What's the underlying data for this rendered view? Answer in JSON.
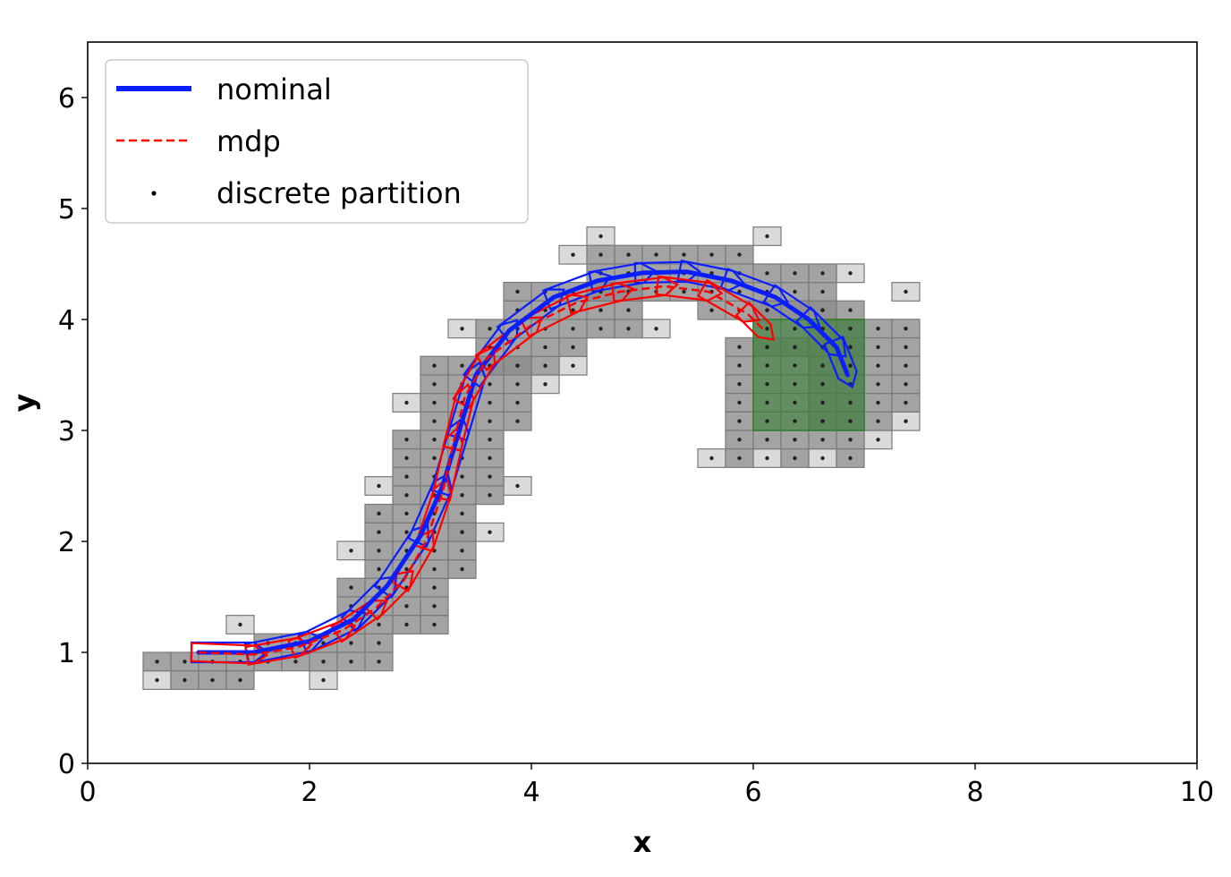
{
  "chart_data": {
    "type": "line",
    "xlabel": "x",
    "ylabel": "y",
    "xlim": [
      0,
      10
    ],
    "ylim": [
      0,
      6.5
    ],
    "xticks": [
      "0",
      "2",
      "4",
      "6",
      "8",
      "10"
    ],
    "yticks": [
      "0",
      "1",
      "2",
      "3",
      "4",
      "5",
      "6"
    ],
    "grid": false,
    "legend_position": "upper-left",
    "colors": {
      "nominal": "#0a1eff",
      "mdp": "#ff0000",
      "partition_dot": "#222222",
      "cell_dark": "#8c8c8c",
      "cell_light": "#d6d6d6",
      "cell_border": "#7a7a7a",
      "goal": "#2e7d2e"
    },
    "series": [
      {
        "name": "nominal",
        "style": "solid",
        "points": [
          [
            1.0,
            1.0
          ],
          [
            1.5,
            1.0
          ],
          [
            2.0,
            1.1
          ],
          [
            2.4,
            1.3
          ],
          [
            2.7,
            1.6
          ],
          [
            3.0,
            2.05
          ],
          [
            3.2,
            2.5
          ],
          [
            3.35,
            3.0
          ],
          [
            3.5,
            3.5
          ],
          [
            3.8,
            3.9
          ],
          [
            4.2,
            4.2
          ],
          [
            4.6,
            4.35
          ],
          [
            5.0,
            4.42
          ],
          [
            5.4,
            4.43
          ],
          [
            5.8,
            4.35
          ],
          [
            6.2,
            4.2
          ],
          [
            6.5,
            4.0
          ],
          [
            6.75,
            3.75
          ],
          [
            6.85,
            3.5
          ]
        ]
      },
      {
        "name": "mdp",
        "style": "dashed",
        "points": [
          [
            1.0,
            1.0
          ],
          [
            1.5,
            0.98
          ],
          [
            1.9,
            1.05
          ],
          [
            2.3,
            1.2
          ],
          [
            2.6,
            1.4
          ],
          [
            2.85,
            1.65
          ],
          [
            3.05,
            2.0
          ],
          [
            3.2,
            2.45
          ],
          [
            3.3,
            2.9
          ],
          [
            3.4,
            3.3
          ],
          [
            3.6,
            3.65
          ],
          [
            4.0,
            3.95
          ],
          [
            4.4,
            4.15
          ],
          [
            4.8,
            4.25
          ],
          [
            5.2,
            4.3
          ],
          [
            5.6,
            4.25
          ],
          [
            5.95,
            4.05
          ],
          [
            6.1,
            3.9
          ]
        ]
      },
      {
        "name": "discrete partition",
        "style": "dots"
      }
    ],
    "partition": {
      "cell_width": 0.25,
      "cell_height": 0.167,
      "dark_cells": [
        {
          "x": [
            0.625,
            1.375
          ],
          "y": [
            0.75,
            1.083
          ]
        },
        {
          "x": [
            1.625,
            2.625
          ],
          "y": [
            0.917,
            1.25
          ]
        },
        {
          "x": [
            2.375,
            3.125
          ],
          "y": [
            1.25,
            1.75
          ]
        },
        {
          "x": [
            2.625,
            3.375
          ],
          "y": [
            1.75,
            2.417
          ]
        },
        {
          "x": [
            2.875,
            3.625
          ],
          "y": [
            2.417,
            3.083
          ]
        },
        {
          "x": [
            3.125,
            3.875
          ],
          "y": [
            3.083,
            3.75
          ]
        },
        {
          "x": [
            3.625,
            4.375
          ],
          "y": [
            3.583,
            4.083
          ]
        },
        {
          "x": [
            3.875,
            4.875
          ],
          "y": [
            3.917,
            4.417
          ]
        },
        {
          "x": [
            4.625,
            5.875
          ],
          "y": [
            4.25,
            4.75
          ]
        },
        {
          "x": [
            5.625,
            6.625
          ],
          "y": [
            4.083,
            4.583
          ]
        },
        {
          "x": [
            6.125,
            6.875
          ],
          "y": [
            3.75,
            4.25
          ]
        },
        {
          "x": [
            6.625,
            7.375
          ],
          "y": [
            3.083,
            4.083
          ]
        },
        {
          "x": [
            5.875,
            6.875
          ],
          "y": [
            2.75,
            3.917
          ]
        }
      ],
      "light_cells": [
        {
          "x": 0.625,
          "y": 0.75
        },
        {
          "x": 2.125,
          "y": 0.75
        },
        {
          "x": 1.375,
          "y": 1.25
        },
        {
          "x": 2.375,
          "y": 1.917
        },
        {
          "x": 2.625,
          "y": 2.5
        },
        {
          "x": 3.375,
          "y": 2.083
        },
        {
          "x": 2.875,
          "y": 3.25
        },
        {
          "x": 3.625,
          "y": 2.083
        },
        {
          "x": 3.875,
          "y": 2.5
        },
        {
          "x": 3.375,
          "y": 3.917
        },
        {
          "x": 4.125,
          "y": 3.417
        },
        {
          "x": 4.375,
          "y": 3.583
        },
        {
          "x": 4.375,
          "y": 4.583
        },
        {
          "x": 4.625,
          "y": 4.75
        },
        {
          "x": 5.125,
          "y": 3.917
        },
        {
          "x": 6.125,
          "y": 4.75
        },
        {
          "x": 6.875,
          "y": 4.417
        },
        {
          "x": 7.375,
          "y": 4.25
        },
        {
          "x": 7.375,
          "y": 3.083
        },
        {
          "x": 7.125,
          "y": 2.917
        },
        {
          "x": 5.625,
          "y": 2.75
        },
        {
          "x": 6.125,
          "y": 2.75
        },
        {
          "x": 6.625,
          "y": 2.75
        }
      ]
    },
    "goal_region": {
      "x": [
        6.0,
        7.0
      ],
      "y": [
        3.0,
        4.0
      ]
    }
  }
}
